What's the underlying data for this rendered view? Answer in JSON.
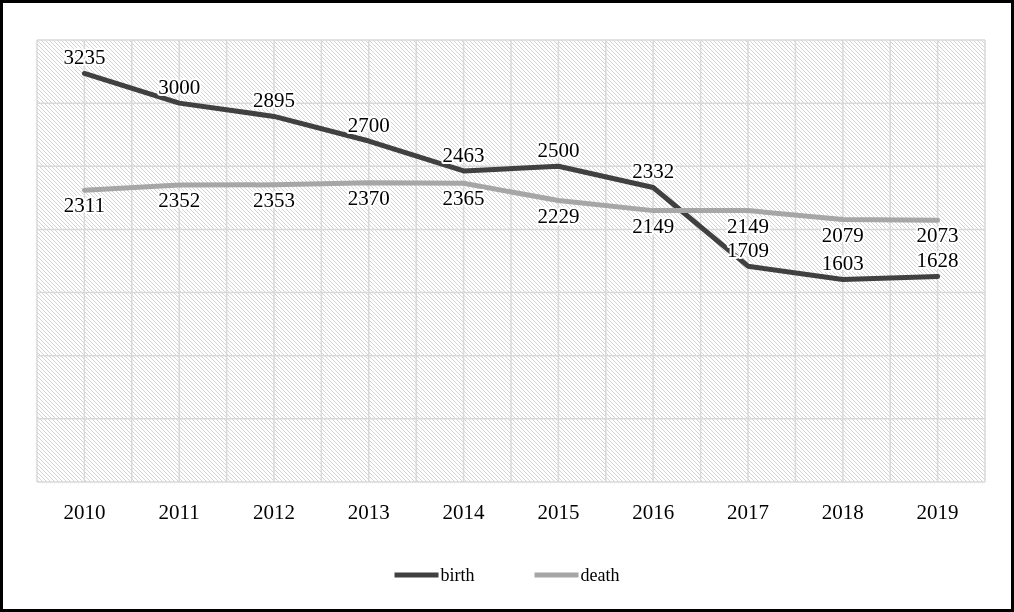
{
  "chart_data": {
    "type": "line",
    "categories": [
      "2010",
      "2011",
      "2012",
      "2013",
      "2014",
      "2015",
      "2016",
      "2017",
      "2018",
      "2019"
    ],
    "series": [
      {
        "name": "birth",
        "color": "#404040",
        "values": [
          3235,
          3000,
          2895,
          2700,
          2463,
          2500,
          2332,
          1709,
          1603,
          1628
        ]
      },
      {
        "name": "death",
        "color": "#a6a6a6",
        "values": [
          2311,
          2352,
          2353,
          2370,
          2365,
          2229,
          2149,
          2149,
          2079,
          2073
        ]
      }
    ],
    "ylim": [
      0,
      3500
    ],
    "yticks": [
      {
        "value": 0,
        "label": null
      },
      {
        "value": 500,
        "label": null
      },
      {
        "value": 1000,
        "label": null
      },
      {
        "value": 1500,
        "label": null
      },
      {
        "value": 2000,
        "label": null
      },
      {
        "value": 2500,
        "label": null
      },
      {
        "value": 3000,
        "label": null
      },
      {
        "value": 3500,
        "label": null
      }
    ],
    "tick_labels": "x",
    "grid": true,
    "data_labels": true,
    "legend": "bottom",
    "marker": "none",
    "line_style": "solid"
  }
}
